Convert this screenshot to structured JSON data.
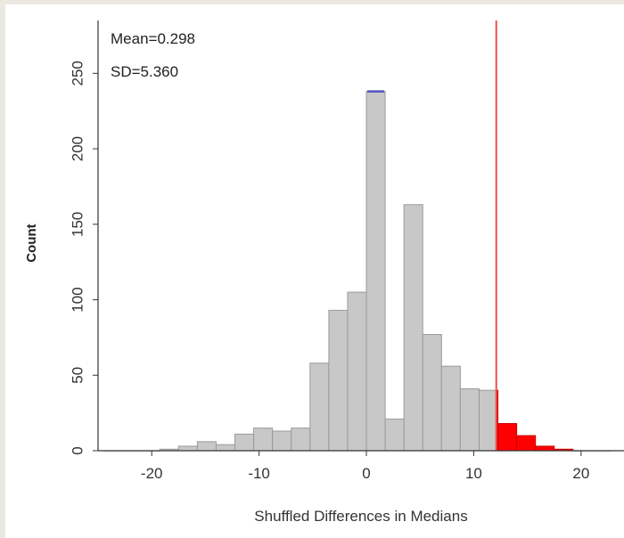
{
  "chart_data": {
    "type": "bar",
    "title": "",
    "xlabel": "Shuffled Differences in Medians",
    "ylabel": "Count",
    "xlim": [
      -25,
      24
    ],
    "ylim": [
      0,
      285
    ],
    "x_ticks": [
      -20,
      -10,
      0,
      10,
      20
    ],
    "x_tick_labels": [
      "-20",
      "-10",
      "0",
      "10",
      "20"
    ],
    "y_ticks": [
      0,
      50,
      100,
      150,
      200,
      250
    ],
    "y_tick_labels": [
      "0",
      "50",
      "100",
      "150",
      "200",
      "250"
    ],
    "bin_width": 1.75,
    "bins": [
      {
        "x0": -24.5,
        "count": 0
      },
      {
        "x0": -22.75,
        "count": 0
      },
      {
        "x0": -21.0,
        "count": 0
      },
      {
        "x0": -19.25,
        "count": 1
      },
      {
        "x0": -17.5,
        "count": 3
      },
      {
        "x0": -15.75,
        "count": 6
      },
      {
        "x0": -14.0,
        "count": 4
      },
      {
        "x0": -12.25,
        "count": 11
      },
      {
        "x0": -10.5,
        "count": 15
      },
      {
        "x0": -8.75,
        "count": 13
      },
      {
        "x0": -7.0,
        "count": 15
      },
      {
        "x0": -5.25,
        "count": 58
      },
      {
        "x0": -3.5,
        "count": 93
      },
      {
        "x0": -1.75,
        "count": 105
      },
      {
        "x0": -0.0,
        "count": 238
      },
      {
        "x0": 1.75,
        "count": 21
      },
      {
        "x0": 3.5,
        "count": 163
      },
      {
        "x0": 5.25,
        "count": 77
      },
      {
        "x0": 7.0,
        "count": 56
      },
      {
        "x0": 8.75,
        "count": 41
      },
      {
        "x0": 10.5,
        "count": 40
      },
      {
        "x0": 12.25,
        "count": 18
      },
      {
        "x0": 14.0,
        "count": 10
      },
      {
        "x0": 15.75,
        "count": 3
      },
      {
        "x0": 17.5,
        "count": 1
      },
      {
        "x0": 19.25,
        "count": 0
      },
      {
        "x0": 21.0,
        "count": 0
      }
    ],
    "colors": {
      "bar_fill": "#c8c8c8",
      "bar_stroke": "#9a9a9a",
      "tail_fill": "#ff0000",
      "tail_stroke": "#cc0000",
      "reference_line": "#e85050",
      "mean_marker": "#5050c0"
    },
    "reference_line_x": 12.1,
    "mean_marker_bin": -0.0,
    "annotations": [
      "Mean=0.298",
      "SD=5.360"
    ],
    "grid": false,
    "legend": "none"
  }
}
